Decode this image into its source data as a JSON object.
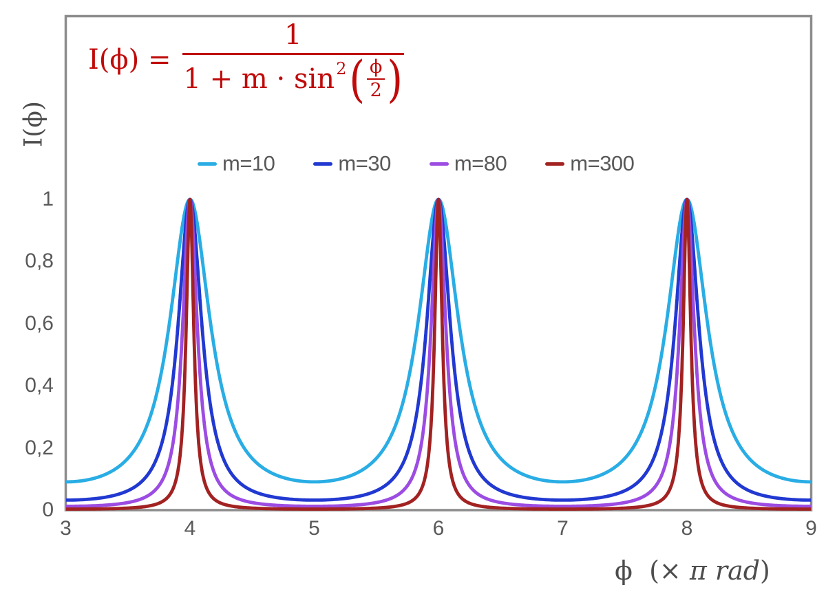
{
  "colors": {
    "formula": "#C00A0A",
    "axis_frame": "#8C8C8C",
    "tick_text": "#595959",
    "axis_title_text": "#4D4D4D",
    "background": "#FFFFFF"
  },
  "formula": {
    "lhs": "I(ϕ) =",
    "numerator": "1",
    "denominator_prefix": "1 + m · sin",
    "denominator_sup": "2",
    "inner_numerator": "ϕ",
    "inner_denominator": "2"
  },
  "axis_titles": {
    "y_title": "I(ϕ)",
    "x_title_phi": "ϕ",
    "x_title_pre": "(×",
    "x_title_var": "π rad",
    "x_title_close": ")"
  },
  "chart_data": {
    "type": "line",
    "title": "",
    "xlabel": "ϕ (× π rad)",
    "ylabel": "I(ϕ)",
    "function": "I(phi) = 1 / (1 + m * sin^2(phi/2)), x axis in units of pi rad",
    "xlim": [
      3,
      9
    ],
    "ylim": [
      0,
      1.59
    ],
    "grid": false,
    "legend_position": "top-center-inside",
    "peaks_at_x": [
      4,
      6,
      8
    ],
    "peak_value": 1,
    "minima_at_x": [
      3,
      5,
      7,
      9
    ],
    "x_ticks": [
      {
        "value": 3,
        "label": "3"
      },
      {
        "value": 4,
        "label": "4"
      },
      {
        "value": 5,
        "label": "5"
      },
      {
        "value": 6,
        "label": "6"
      },
      {
        "value": 7,
        "label": "7"
      },
      {
        "value": 8,
        "label": "8"
      },
      {
        "value": 9,
        "label": "9"
      }
    ],
    "y_ticks": [
      {
        "value": 0,
        "label": "0"
      },
      {
        "value": 0.2,
        "label": "0,2"
      },
      {
        "value": 0.4,
        "label": "0,4"
      },
      {
        "value": 0.6,
        "label": "0,6"
      },
      {
        "value": 0.8,
        "label": "0,8"
      },
      {
        "value": 1,
        "label": "1"
      }
    ],
    "series": [
      {
        "name": "m=10",
        "m": 10,
        "color": "#29ADE4",
        "min_value": 0.0909
      },
      {
        "name": "m=30",
        "m": 30,
        "color": "#2139D1",
        "min_value": 0.0323
      },
      {
        "name": "m=80",
        "m": 80,
        "color": "#9C4CE2",
        "min_value": 0.0123
      },
      {
        "name": "m=300",
        "m": 300,
        "color": "#A22222",
        "min_value": 0.0033
      }
    ]
  }
}
